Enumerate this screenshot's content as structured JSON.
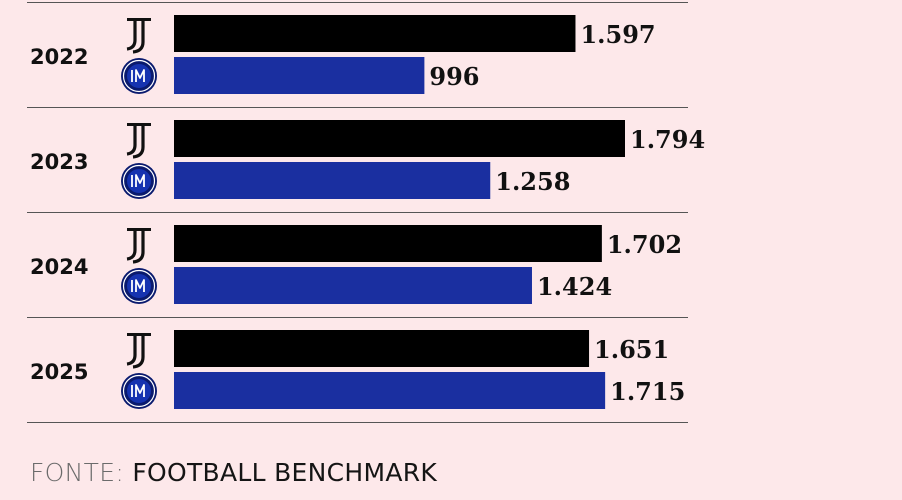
{
  "chart_data": {
    "type": "bar",
    "orientation": "horizontal",
    "categories": [
      "2022",
      "2023",
      "2024",
      "2025"
    ],
    "series": [
      {
        "club": "Juventus",
        "logo_icon": "juventus-logo-icon",
        "color": "#000000",
        "values": [
          1597,
          1794,
          1702,
          1651
        ],
        "labels": [
          "1.597",
          "1.794",
          "1.702",
          "1.651"
        ]
      },
      {
        "club": "Inter",
        "logo_icon": "inter-logo-icon",
        "color": "#1a2fa0",
        "values": [
          996,
          1258,
          1424,
          1715
        ],
        "labels": [
          "996",
          "1.258",
          "1.424",
          "1.715"
        ]
      }
    ],
    "xlim": [
      0,
      1794
    ],
    "grid": false,
    "legend": "none"
  },
  "source": {
    "prefix": "FONTE:",
    "name": "FOOTBALL BENCHMARK"
  },
  "colors": {
    "background": "#fde8ea",
    "divider": "#555555",
    "inter_blue": "#1a2fa0",
    "juve_black": "#000000"
  }
}
